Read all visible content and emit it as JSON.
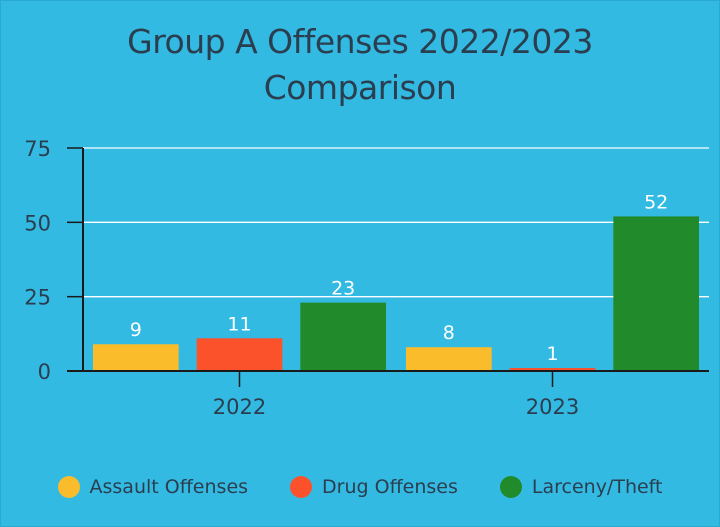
{
  "chart_data": {
    "type": "bar",
    "title_lines": [
      "Group A Offenses 2022/2023",
      "Comparison"
    ],
    "categories": [
      "2022",
      "2023"
    ],
    "series": [
      {
        "name": "Assault Offenses",
        "color": "#fbbc2c",
        "values": [
          9,
          8
        ]
      },
      {
        "name": "Drug Offenses",
        "color": "#fc522c",
        "values": [
          11,
          1
        ]
      },
      {
        "name": "Larceny/Theft",
        "color": "#218b2c",
        "values": [
          23,
          52
        ]
      }
    ],
    "ylim": [
      0,
      75
    ],
    "yticks": [
      0,
      25,
      50,
      75
    ],
    "grid": true,
    "legend_position": "bottom",
    "data_labels": true
  },
  "colors": {
    "background": "#33bae3",
    "text": "#2b3e4f",
    "gridline": "#ffffff",
    "data_label": "#ffffff"
  }
}
